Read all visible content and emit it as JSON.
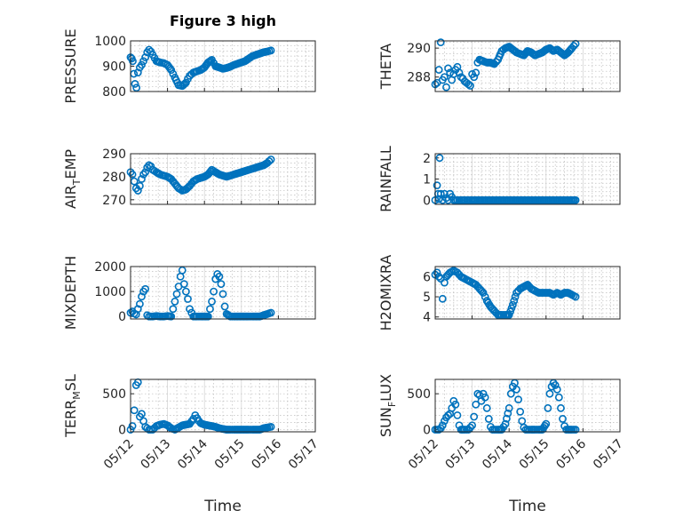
{
  "figure": {
    "title": "Figure 3 high",
    "xlabel": "Time",
    "color": "#0072BD"
  },
  "chart_data": [
    {
      "type": "scatter",
      "id": "pressure",
      "ylabel": "PRESSURE",
      "ylabel_parts": [
        "PRESSURE"
      ],
      "ylim": [
        800,
        1000
      ],
      "yticks": [
        "800",
        "900",
        "1000"
      ],
      "ytick_values": [
        800,
        900,
        1000
      ],
      "x": [
        0,
        0.03,
        0.06,
        0.09,
        0.12,
        0.16,
        0.2,
        0.25,
        0.3,
        0.35,
        0.4,
        0.45,
        0.5,
        0.55,
        0.6,
        0.7,
        0.8,
        0.9,
        1.0,
        1.1,
        1.2,
        1.3,
        1.4,
        1.5,
        1.55,
        1.6,
        1.7,
        1.8,
        1.9,
        2.0,
        2.1,
        2.2,
        2.3,
        2.4,
        2.5,
        2.6,
        2.7,
        2.8,
        2.9,
        3.0,
        3.1,
        3.2,
        3.3,
        3.4,
        3.5,
        3.6,
        3.7,
        3.8
      ],
      "y": [
        935,
        930,
        920,
        870,
        830,
        815,
        875,
        895,
        905,
        920,
        935,
        955,
        965,
        958,
        945,
        920,
        915,
        912,
        905,
        885,
        855,
        825,
        822,
        835,
        850,
        862,
        875,
        880,
        885,
        895,
        915,
        925,
        900,
        895,
        890,
        893,
        898,
        905,
        910,
        915,
        920,
        930,
        940,
        945,
        950,
        955,
        958,
        962
      ],
      "xlim": [
        0,
        5
      ],
      "xticks": [
        "05/12",
        "05/13",
        "05/14",
        "05/15",
        "05/16",
        "05/17"
      ]
    },
    {
      "type": "scatter",
      "id": "theta",
      "ylabel": "THETA",
      "ylabel_parts": [
        "THETA"
      ],
      "ylim": [
        287,
        290.5
      ],
      "yticks": [
        "288",
        "290"
      ],
      "ytick_values": [
        288,
        290
      ],
      "x": [
        0,
        0.05,
        0.1,
        0.15,
        0.2,
        0.25,
        0.3,
        0.35,
        0.4,
        0.45,
        0.5,
        0.55,
        0.6,
        0.65,
        0.7,
        0.75,
        0.8,
        0.85,
        0.9,
        0.95,
        1.0,
        1.05,
        1.1,
        1.15,
        1.2,
        1.3,
        1.4,
        1.5,
        1.6,
        1.7,
        1.8,
        1.9,
        2.0,
        2.1,
        2.2,
        2.3,
        2.4,
        2.5,
        2.6,
        2.7,
        2.8,
        2.9,
        3.0,
        3.1,
        3.2,
        3.3,
        3.4,
        3.5,
        3.6,
        3.7,
        3.8
      ],
      "y": [
        287.5,
        287.6,
        288.5,
        290.4,
        287.8,
        288.0,
        287.3,
        288.6,
        288.3,
        287.8,
        288.2,
        288.5,
        288.7,
        288.3,
        288.0,
        287.9,
        287.7,
        287.6,
        287.5,
        287.4,
        288.2,
        288.0,
        288.3,
        289.0,
        289.2,
        289.1,
        289.0,
        289.0,
        288.9,
        289.2,
        289.8,
        290.0,
        290.1,
        289.9,
        289.7,
        289.6,
        289.5,
        289.8,
        289.7,
        289.5,
        289.6,
        289.7,
        289.9,
        290.0,
        289.8,
        289.9,
        289.7,
        289.5,
        289.7,
        290.0,
        290.3
      ],
      "xlim": [
        0,
        5
      ],
      "xticks": [
        "05/12",
        "05/13",
        "05/14",
        "05/15",
        "05/16",
        "05/17"
      ]
    },
    {
      "type": "scatter",
      "id": "air_temp",
      "ylabel": "AIR_TEMP",
      "ylabel_parts": [
        "AIR",
        "T",
        "EMP"
      ],
      "ylim": [
        268,
        290
      ],
      "yticks": [
        "270",
        "280",
        "290"
      ],
      "ytick_values": [
        270,
        280,
        290
      ],
      "x": [
        0,
        0.05,
        0.1,
        0.15,
        0.2,
        0.25,
        0.3,
        0.35,
        0.4,
        0.45,
        0.5,
        0.55,
        0.6,
        0.7,
        0.8,
        0.9,
        1.0,
        1.1,
        1.2,
        1.3,
        1.4,
        1.5,
        1.6,
        1.7,
        1.8,
        1.9,
        2.0,
        2.1,
        2.2,
        2.3,
        2.4,
        2.5,
        2.6,
        2.7,
        2.8,
        2.9,
        3.0,
        3.1,
        3.2,
        3.3,
        3.4,
        3.5,
        3.6,
        3.7,
        3.8
      ],
      "y": [
        282,
        281,
        278,
        275,
        274,
        276,
        279,
        281,
        282,
        284,
        285,
        284.5,
        283,
        282,
        281,
        280.5,
        280,
        279,
        277,
        275,
        274,
        274.5,
        276,
        278,
        279,
        279.5,
        280,
        281,
        283,
        282,
        281,
        280.5,
        280,
        280.5,
        281,
        281.5,
        282,
        282.5,
        283,
        283.5,
        284,
        284.5,
        285,
        286,
        287.5
      ],
      "xlim": [
        0,
        5
      ],
      "xticks": [
        "05/12",
        "05/13",
        "05/14",
        "05/15",
        "05/16",
        "05/17"
      ]
    },
    {
      "type": "scatter",
      "id": "rainfall",
      "ylabel": "RAINFALL",
      "ylabel_parts": [
        "RAINFALL"
      ],
      "ylim": [
        -0.2,
        2.2
      ],
      "yticks": [
        "0",
        "1",
        "2"
      ],
      "ytick_values": [
        0,
        1,
        2
      ],
      "x": [
        0,
        0.05,
        0.08,
        0.1,
        0.12,
        0.15,
        0.2,
        0.25,
        0.3,
        0.35,
        0.4,
        0.5,
        0.6,
        0.7,
        0.8,
        0.9,
        1.0,
        1.2,
        1.4,
        1.6,
        1.8,
        2.0,
        2.2,
        2.4,
        2.6,
        2.8,
        3.0,
        3.2,
        3.4,
        3.6,
        3.8
      ],
      "y": [
        0,
        0.7,
        0.3,
        0.05,
        2.0,
        0.3,
        0,
        0.3,
        0.1,
        0,
        0.3,
        0,
        0,
        0,
        0,
        0,
        0,
        0,
        0,
        0,
        0,
        0,
        0,
        0,
        0,
        0,
        0,
        0,
        0,
        0,
        0
      ],
      "xlim": [
        0,
        5
      ],
      "xticks": [
        "05/12",
        "05/13",
        "05/14",
        "05/15",
        "05/16",
        "05/17"
      ]
    },
    {
      "type": "scatter",
      "id": "mixdepth",
      "ylabel": "MIXDEPTH",
      "ylabel_parts": [
        "MIXDEPTH"
      ],
      "ylim": [
        -100,
        2000
      ],
      "yticks": [
        "0",
        "1000",
        "2000"
      ],
      "ytick_values": [
        0,
        1000,
        2000
      ],
      "x": [
        0,
        0.05,
        0.1,
        0.15,
        0.2,
        0.25,
        0.3,
        0.35,
        0.4,
        0.45,
        0.5,
        0.6,
        0.7,
        0.8,
        0.9,
        1.0,
        1.1,
        1.15,
        1.2,
        1.25,
        1.3,
        1.35,
        1.4,
        1.45,
        1.5,
        1.55,
        1.6,
        1.7,
        1.8,
        1.9,
        2.0,
        2.1,
        2.15,
        2.2,
        2.25,
        2.3,
        2.35,
        2.4,
        2.45,
        2.5,
        2.55,
        2.6,
        2.7,
        2.8,
        2.9,
        3.0,
        3.1,
        3.2,
        3.3,
        3.4,
        3.5,
        3.6,
        3.7,
        3.8
      ],
      "y": [
        150,
        200,
        120,
        80,
        300,
        500,
        800,
        1000,
        1100,
        50,
        0,
        0,
        20,
        0,
        0,
        20,
        0,
        300,
        600,
        900,
        1200,
        1600,
        1850,
        1300,
        1000,
        700,
        300,
        0,
        0,
        0,
        0,
        0,
        300,
        600,
        1000,
        1500,
        1700,
        1600,
        1300,
        900,
        400,
        100,
        0,
        0,
        0,
        0,
        0,
        0,
        0,
        0,
        0,
        50,
        100,
        150
      ],
      "xlim": [
        0,
        5
      ],
      "xticks": [
        "05/12",
        "05/13",
        "05/14",
        "05/15",
        "05/16",
        "05/17"
      ]
    },
    {
      "type": "scatter",
      "id": "h2omixra",
      "ylabel": "H2OMIXRA",
      "ylabel_parts": [
        "H2OMIXRA"
      ],
      "ylim": [
        3.9,
        6.5
      ],
      "yticks": [
        "4",
        "5",
        "6"
      ],
      "ytick_values": [
        4,
        5,
        6
      ],
      "x": [
        0,
        0.05,
        0.1,
        0.15,
        0.2,
        0.25,
        0.3,
        0.4,
        0.5,
        0.6,
        0.7,
        0.8,
        0.9,
        1.0,
        1.1,
        1.2,
        1.3,
        1.4,
        1.5,
        1.6,
        1.7,
        1.8,
        1.9,
        2.0,
        2.1,
        2.2,
        2.3,
        2.4,
        2.5,
        2.6,
        2.7,
        2.8,
        2.9,
        3.0,
        3.1,
        3.2,
        3.3,
        3.4,
        3.5,
        3.6,
        3.7,
        3.8
      ],
      "y": [
        6.1,
        6.2,
        6.0,
        5.9,
        4.9,
        5.7,
        6.0,
        6.2,
        6.3,
        6.2,
        6.0,
        5.9,
        5.8,
        5.7,
        5.6,
        5.4,
        5.2,
        4.8,
        4.5,
        4.3,
        4.1,
        4.1,
        4.1,
        4.1,
        4.6,
        5.2,
        5.4,
        5.5,
        5.6,
        5.4,
        5.3,
        5.2,
        5.2,
        5.2,
        5.2,
        5.1,
        5.2,
        5.1,
        5.2,
        5.2,
        5.1,
        5.0
      ],
      "xlim": [
        0,
        5
      ],
      "xticks": [
        "05/12",
        "05/13",
        "05/14",
        "05/15",
        "05/16",
        "05/17"
      ]
    },
    {
      "type": "scatter",
      "id": "terr_msl",
      "ylabel": "TERR_MSL",
      "ylabel_parts": [
        "TERR",
        "M",
        "SL"
      ],
      "ylim": [
        -30,
        700
      ],
      "yticks": [
        "0",
        "500"
      ],
      "ytick_values": [
        0,
        500
      ],
      "x": [
        0,
        0.05,
        0.1,
        0.15,
        0.2,
        0.25,
        0.3,
        0.35,
        0.4,
        0.5,
        0.6,
        0.7,
        0.8,
        0.9,
        1.0,
        1.1,
        1.2,
        1.3,
        1.4,
        1.5,
        1.6,
        1.7,
        1.75,
        1.8,
        1.85,
        1.9,
        2.0,
        2.1,
        2.2,
        2.3,
        2.4,
        2.5,
        2.6,
        2.7,
        2.8,
        2.9,
        3.0,
        3.1,
        3.2,
        3.3,
        3.4,
        3.5,
        3.6,
        3.7,
        3.8
      ],
      "y": [
        0,
        50,
        270,
        620,
        660,
        180,
        220,
        120,
        40,
        0,
        0,
        50,
        70,
        80,
        60,
        20,
        0,
        30,
        60,
        70,
        80,
        150,
        200,
        160,
        120,
        90,
        70,
        60,
        50,
        40,
        20,
        10,
        0,
        0,
        0,
        0,
        0,
        0,
        0,
        0,
        0,
        0,
        20,
        30,
        40
      ],
      "xlim": [
        0,
        5
      ],
      "xticks": [
        "05/12",
        "05/13",
        "05/14",
        "05/15",
        "05/16",
        "05/17"
      ]
    },
    {
      "type": "scatter",
      "id": "sun_flux",
      "ylabel": "SUN_FLUX",
      "ylabel_parts": [
        "SUN",
        "F",
        "LUX"
      ],
      "ylim": [
        -30,
        700
      ],
      "yticks": [
        "0",
        "500"
      ],
      "ytick_values": [
        0,
        500
      ],
      "x": [
        0,
        0.05,
        0.1,
        0.15,
        0.2,
        0.25,
        0.3,
        0.35,
        0.4,
        0.45,
        0.5,
        0.55,
        0.6,
        0.65,
        0.7,
        0.8,
        0.9,
        1.0,
        1.05,
        1.1,
        1.15,
        1.2,
        1.25,
        1.3,
        1.35,
        1.4,
        1.45,
        1.5,
        1.55,
        1.6,
        1.7,
        1.8,
        1.9,
        2.0,
        2.05,
        2.1,
        2.15,
        2.2,
        2.25,
        2.3,
        2.35,
        2.4,
        2.45,
        2.5,
        2.55,
        2.6,
        2.7,
        2.8,
        2.9,
        3.0,
        3.05,
        3.1,
        3.15,
        3.2,
        3.25,
        3.3,
        3.35,
        3.4,
        3.45,
        3.5,
        3.55,
        3.6,
        3.7,
        3.8
      ],
      "y": [
        0,
        0,
        0,
        20,
        60,
        120,
        170,
        200,
        220,
        300,
        400,
        350,
        200,
        60,
        0,
        0,
        0,
        60,
        180,
        350,
        500,
        480,
        400,
        500,
        450,
        300,
        150,
        40,
        0,
        0,
        0,
        0,
        80,
        300,
        500,
        600,
        650,
        560,
        420,
        250,
        120,
        30,
        0,
        0,
        0,
        0,
        0,
        0,
        0,
        80,
        300,
        500,
        600,
        650,
        620,
        560,
        450,
        300,
        150,
        50,
        0,
        0,
        0,
        0
      ],
      "xlim": [
        0,
        5
      ],
      "xticks": [
        "05/12",
        "05/13",
        "05/14",
        "05/15",
        "05/16",
        "05/17"
      ]
    }
  ]
}
